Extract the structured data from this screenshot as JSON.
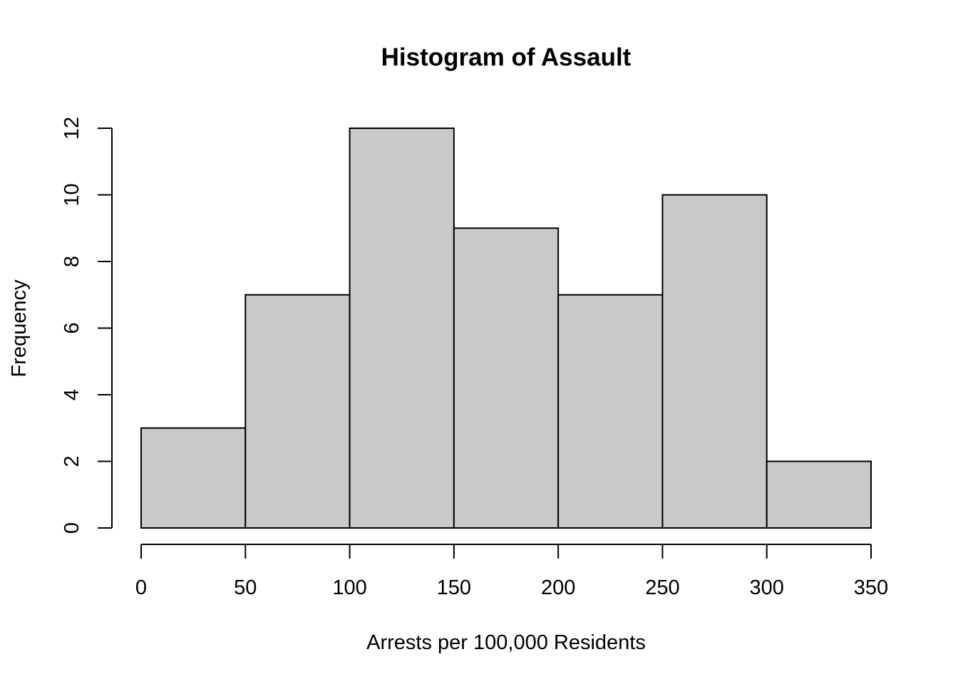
{
  "chart_data": {
    "type": "bar",
    "title": "Histogram of Assault",
    "xlabel": "Arrests per 100,000 Residents",
    "ylabel": "Frequency",
    "bins": [
      {
        "start": 0,
        "end": 50,
        "count": 3
      },
      {
        "start": 50,
        "end": 100,
        "count": 7
      },
      {
        "start": 100,
        "end": 150,
        "count": 12
      },
      {
        "start": 150,
        "end": 200,
        "count": 9
      },
      {
        "start": 200,
        "end": 250,
        "count": 7
      },
      {
        "start": 250,
        "end": 300,
        "count": 10
      },
      {
        "start": 300,
        "end": 350,
        "count": 2
      }
    ],
    "x_ticks": [
      "0",
      "50",
      "100",
      "150",
      "200",
      "250",
      "300",
      "350"
    ],
    "y_ticks": [
      "0",
      "2",
      "4",
      "6",
      "8",
      "10",
      "12"
    ],
    "xlim": [
      0,
      350
    ],
    "ylim": [
      0,
      12
    ],
    "grid": false,
    "colors": {
      "bar_fill": "#c9c9c9",
      "bar_stroke": "#000000"
    }
  }
}
